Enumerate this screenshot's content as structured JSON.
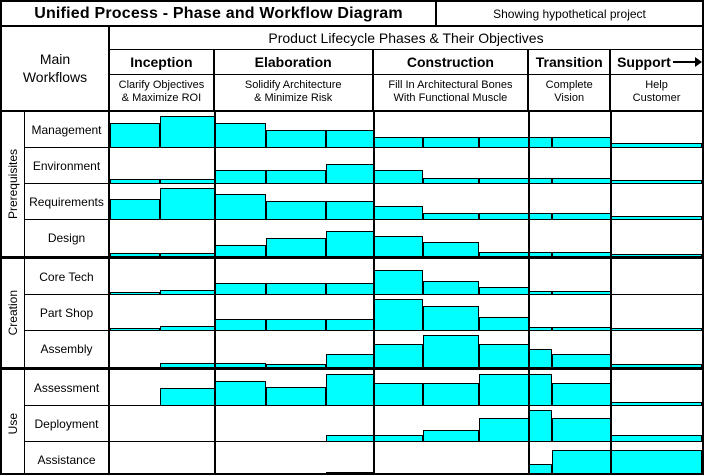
{
  "title": "Unified Process - Phase and Workflow Diagram",
  "subtitle": "Showing hypothetical project",
  "left_header": {
    "line1": "Main",
    "line2": "Workflows"
  },
  "lifecycle_header": "Product Lifecycle Phases & Their Objectives",
  "phases": [
    {
      "name": "Inception",
      "objective_line1": "Clarify Objectives",
      "objective_line2": "& Maximize ROI"
    },
    {
      "name": "Elaboration",
      "objective_line1": "Solidify Architecture",
      "objective_line2": "& Minimize Risk"
    },
    {
      "name": "Construction",
      "objective_line1": "Fill In Architectural Bones",
      "objective_line2": "With Functional Muscle"
    },
    {
      "name": "Transition",
      "objective_line1": "Complete",
      "objective_line2": "Vision"
    },
    {
      "name": "Support",
      "objective_line1": "Help",
      "objective_line2": "Customer"
    }
  ],
  "colors": {
    "bar_fill": "#00FFFF",
    "line": "#000000",
    "background": "#FFFFFF"
  },
  "chart_data": {
    "type": "bar",
    "description": "Relative workflow effort per iteration; bar height is % of row height",
    "columns": [
      {
        "phase": "Inception",
        "left_pct": 0.0,
        "width_pct": 8.43
      },
      {
        "phase": "Inception",
        "left_pct": 8.43,
        "width_pct": 9.28
      },
      {
        "phase": "Elaboration",
        "left_pct": 17.71,
        "width_pct": 8.6
      },
      {
        "phase": "Elaboration",
        "left_pct": 26.31,
        "width_pct": 10.11
      },
      {
        "phase": "Elaboration",
        "left_pct": 36.42,
        "width_pct": 8.1
      },
      {
        "phase": "Construction",
        "left_pct": 44.52,
        "width_pct": 8.43
      },
      {
        "phase": "Construction",
        "left_pct": 52.95,
        "width_pct": 9.44
      },
      {
        "phase": "Construction",
        "left_pct": 62.39,
        "width_pct": 8.44
      },
      {
        "phase": "Transition",
        "left_pct": 70.83,
        "width_pct": 3.87
      },
      {
        "phase": "Transition",
        "left_pct": 74.7,
        "width_pct": 9.95
      },
      {
        "phase": "Support",
        "left_pct": 84.65,
        "width_pct": 15.35
      }
    ],
    "phase_boundaries_pct": [
      17.71,
      44.52,
      70.83,
      84.65
    ],
    "groups": [
      {
        "label": "Prerequisites",
        "rows": [
          {
            "label": "Management",
            "bars": [
              70,
              88,
              70,
              50,
              50,
              30,
              30,
              30,
              30,
              30,
              12
            ]
          },
          {
            "label": "Environment",
            "bars": [
              12,
              12,
              38,
              38,
              55,
              38,
              15,
              15,
              15,
              15,
              10
            ]
          },
          {
            "label": "Requirements",
            "bars": [
              58,
              90,
              72,
              52,
              52,
              38,
              16,
              16,
              16,
              16,
              8
            ]
          },
          {
            "label": "Design",
            "bars": [
              8,
              8,
              30,
              50,
              70,
              55,
              38,
              10,
              10,
              10,
              6
            ]
          }
        ]
      },
      {
        "label": "Creation",
        "rows": [
          {
            "label": "Core Tech",
            "bars": [
              6,
              12,
              32,
              32,
              32,
              70,
              38,
              20,
              8,
              8,
              0
            ]
          },
          {
            "label": "Part Shop",
            "bars": [
              6,
              12,
              32,
              32,
              32,
              88,
              70,
              36,
              10,
              10,
              6
            ]
          },
          {
            "label": "Assembly",
            "bars": [
              0,
              10,
              10,
              8,
              36,
              64,
              88,
              64,
              50,
              36,
              8
            ]
          }
        ]
      },
      {
        "label": "Use",
        "rows": [
          {
            "label": "Assessment",
            "bars": [
              0,
              50,
              70,
              52,
              88,
              62,
              62,
              88,
              88,
              62,
              8
            ]
          },
          {
            "label": "Deployment",
            "bars": [
              0,
              0,
              0,
              0,
              18,
              18,
              32,
              65,
              88,
              65,
              18
            ]
          },
          {
            "label": "Assistance",
            "bars": [
              0,
              0,
              0,
              0,
              18,
              0,
              0,
              14,
              38,
              78,
              78
            ]
          }
        ]
      }
    ]
  }
}
